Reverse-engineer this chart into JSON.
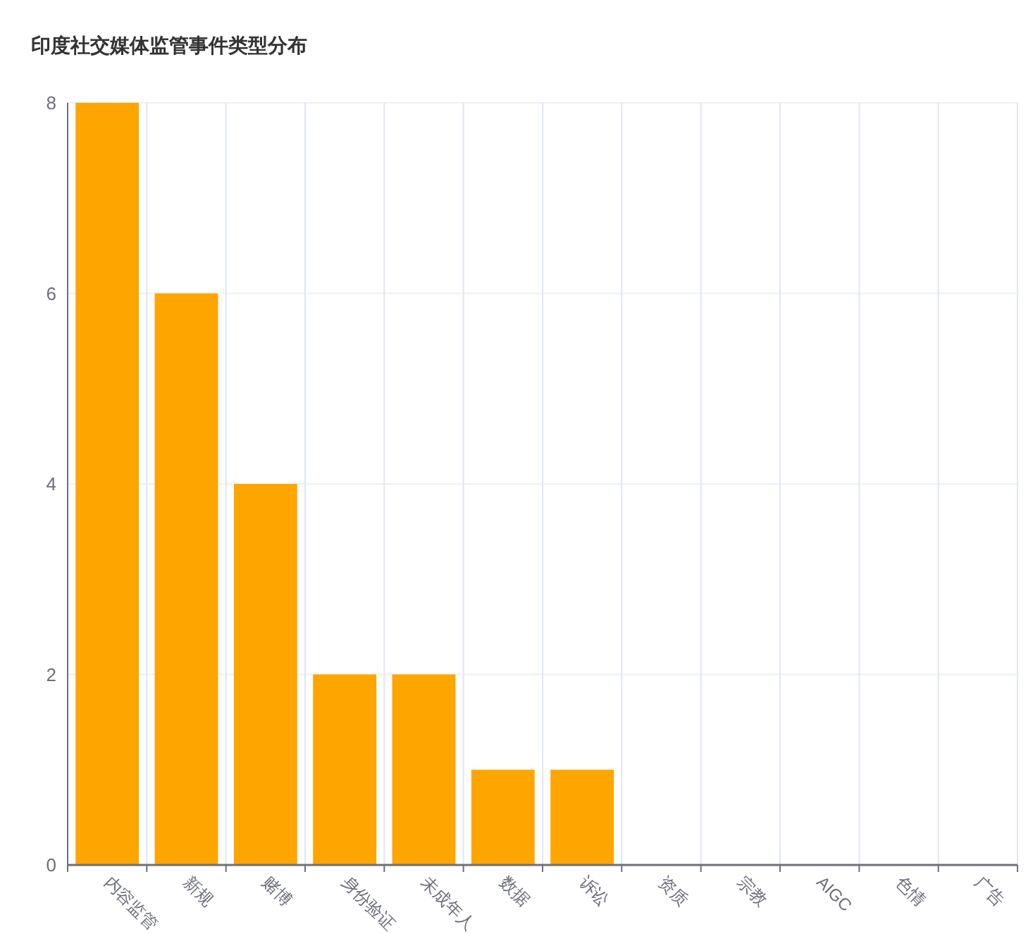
{
  "chart_data": {
    "type": "bar",
    "title": "印度社交媒体监管事件类型分布",
    "categories": [
      "内容监管",
      "新规",
      "赌博",
      "身份验证",
      "未成年人",
      "数据",
      "诉讼",
      "资质",
      "宗教",
      "AIGC",
      "色情",
      "广告"
    ],
    "values": [
      8,
      6,
      4,
      2,
      2,
      1,
      1,
      0,
      0,
      0,
      0,
      0
    ],
    "color": "#ffa500",
    "ylim": [
      0,
      8
    ],
    "yticks": [
      0,
      2,
      4,
      6,
      8
    ],
    "grid": true
  }
}
